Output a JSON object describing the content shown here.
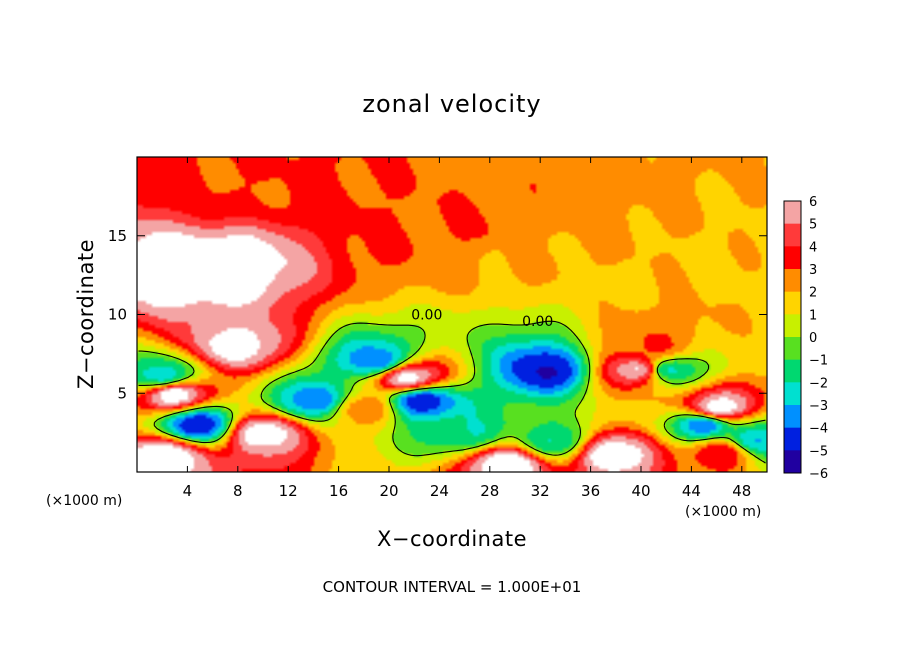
{
  "chart_data": {
    "type": "heatmap",
    "title": "zonal velocity",
    "xlabel": "X−coordinate",
    "ylabel": "Z−coordinate",
    "x_unit": "(×1000 m)",
    "y_unit": "(×1000 m)",
    "xlim": [
      0,
      50
    ],
    "ylim": [
      0,
      20
    ],
    "x_ticks": [
      4,
      8,
      12,
      16,
      20,
      24,
      28,
      32,
      36,
      40,
      44,
      48
    ],
    "y_ticks": [
      5,
      10,
      15
    ],
    "x_tick_labels": [
      "4",
      "8",
      "12",
      "16",
      "20",
      "24",
      "28",
      "32",
      "36",
      "40",
      "44",
      "48"
    ],
    "y_tick_labels": [
      "5",
      "10",
      "15"
    ],
    "colorbar": {
      "levels": [
        6,
        5,
        4,
        3,
        2,
        1,
        0,
        -1,
        -2,
        -3,
        -4,
        -5,
        -6
      ],
      "labels": [
        "6",
        "5",
        "4",
        "3",
        "2",
        "1",
        "0",
        "−1",
        "−2",
        "−3",
        "−4",
        "−5",
        "−6"
      ],
      "colors": [
        "#f4a4a4",
        "#ff3a3a",
        "#ff0000",
        "#ff8c00",
        "#ffd400",
        "#c8f000",
        "#58e020",
        "#00d870",
        "#00e0d0",
        "#0090ff",
        "#0020e0",
        "#2000a0",
        "#6a00a8"
      ],
      "saturated_high": "#ffffff",
      "saturated_low": "#ffffff"
    },
    "contour_labels": [
      {
        "text": "0.00",
        "x": 23,
        "z": 10
      },
      {
        "text": "0.00",
        "x": 31.8,
        "z": 9.6
      }
    ],
    "contour_interval_text": "CONTOUR INTERVAL = 1.000E+01",
    "field_features": [
      {
        "x": 7,
        "z": 13,
        "value": 7
      },
      {
        "x": 4,
        "z": 12.5,
        "value": 7
      },
      {
        "x": 8,
        "z": 8,
        "value": 6.5
      },
      {
        "x": 3,
        "z": 5,
        "value": 7
      },
      {
        "x": 10,
        "z": 2.5,
        "value": 7
      },
      {
        "x": 40,
        "z": 6.5,
        "value": 7
      },
      {
        "x": 38,
        "z": 1.2,
        "value": 7
      },
      {
        "x": 46,
        "z": 4,
        "value": 7
      },
      {
        "x": 2.5,
        "z": 1,
        "value": 7
      },
      {
        "x": 21.5,
        "z": 6,
        "value": 7
      },
      {
        "x": 29.5,
        "z": 0.5,
        "value": 7
      },
      {
        "x": 46.5,
        "z": 1.3,
        "value": 4
      },
      {
        "x": 18,
        "z": 4,
        "value": 3
      },
      {
        "x": 22,
        "z": 15,
        "value": 3
      },
      {
        "x": 27,
        "z": 15.5,
        "value": 3
      },
      {
        "x": 8,
        "z": 18,
        "value": 3
      },
      {
        "x": 41,
        "z": 8,
        "value": 3
      },
      {
        "x": 30,
        "z": 14,
        "value": 2
      },
      {
        "x": 22.5,
        "z": 4.5,
        "value": -5
      },
      {
        "x": 19,
        "z": 7,
        "value": -4
      },
      {
        "x": 32.5,
        "z": 6.5,
        "value": -5
      },
      {
        "x": 42,
        "z": 6.5,
        "value": -3
      },
      {
        "x": 5,
        "z": 3,
        "value": -5
      },
      {
        "x": 14,
        "z": 4.5,
        "value": -4
      },
      {
        "x": 33,
        "z": 2,
        "value": -2
      },
      {
        "x": 45,
        "z": 3,
        "value": -4
      },
      {
        "x": 49,
        "z": 2,
        "value": -3
      },
      {
        "x": 26,
        "z": 2.5,
        "value": -2
      },
      {
        "x": 2,
        "z": 6,
        "value": -3
      }
    ]
  }
}
